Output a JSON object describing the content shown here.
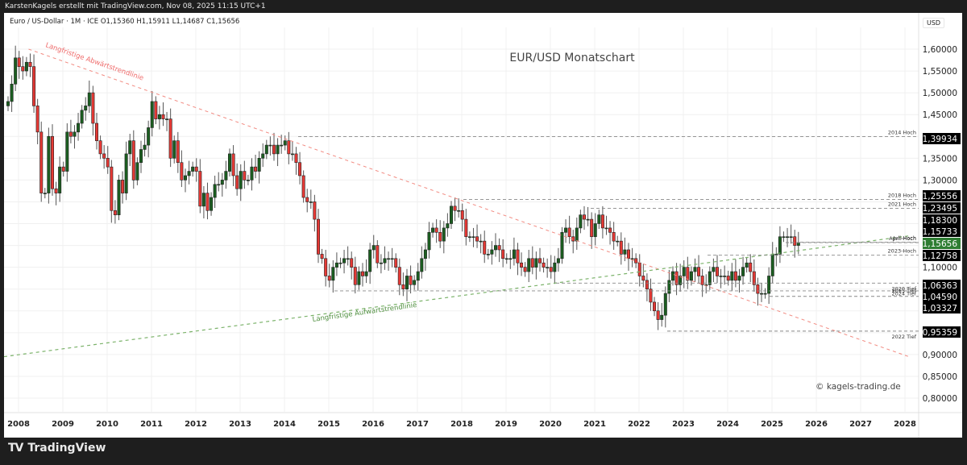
{
  "header": {
    "attribution": "KarstenKagels erstellt mit TradingView.com, Nov 08, 2025 11:15 UTC+1"
  },
  "legend": {
    "symbol": "Euro / US-Dollar · 1M · ICE",
    "ohlc": "O1,15360  H1,15911  L1,14687  C1,15656",
    "text": "Euro / US-Dollar · 1M · ICE  O1,15360  H1,15911  L1,14687  C1,15656"
  },
  "price_axis": {
    "currency": "USD",
    "ticks": [
      "1,60000",
      "1,55000",
      "1,50000",
      "1,45000",
      "1,35000",
      "1,30000",
      "1,10000",
      "0,90000",
      "0,85000",
      "0,80000"
    ]
  },
  "time_axis": {
    "ticks": [
      "2008",
      "2009",
      "2010",
      "2011",
      "2012",
      "2013",
      "2014",
      "2015",
      "2016",
      "2017",
      "2018",
      "2019",
      "2020",
      "2021",
      "2022",
      "2023",
      "2024",
      "2025",
      "2026",
      "2027",
      "2028"
    ]
  },
  "footer": {
    "brand": "TradingView"
  },
  "colors": {
    "up": "#1b5e20",
    "down": "#e53935",
    "downtrend": "#f28b82",
    "uptrend": "#7cb36b",
    "level": "#888888",
    "current": "#2e7d32"
  },
  "chart_data": {
    "type": "candlestick",
    "title": "EUR/USD Monatschart",
    "symbol": "Euro / US-Dollar",
    "interval": "1M",
    "exchange": "ICE",
    "last_bar": {
      "open": 1.1536,
      "high": 1.15911,
      "low": 1.14687,
      "close": 1.15656
    },
    "ylabel": "USD",
    "ylim": [
      0.78,
      1.64
    ],
    "xlim": [
      "2008-01",
      "2028-06"
    ],
    "watermark": "© kagels-trading.de",
    "trendlines": [
      {
        "label": "Langfristige Abwärtstrendlinie",
        "color": "#f28b82",
        "from": [
          "2008-07",
          1.6
        ],
        "to": [
          "2028-06",
          0.895
        ]
      },
      {
        "label": "Langfristige Aufwärtstrendlinie",
        "color": "#7cb36b",
        "from": [
          "2008-01",
          0.895
        ],
        "to": [
          "2026-01",
          1.172
        ]
      }
    ],
    "levels": [
      {
        "label": "2014 Hoch",
        "value": 1.39934,
        "tag": "1,39934"
      },
      {
        "label": "2018 Hoch",
        "value": 1.25556,
        "tag": "1,25556"
      },
      {
        "label": "2021 Hoch",
        "value": 1.23495,
        "tag": "1,23495"
      },
      {
        "label": "",
        "value": 1.183,
        "tag": "1,18300"
      },
      {
        "label": "Juli-Hoch",
        "value": 1.15733,
        "tag": "1,15733"
      },
      {
        "label": "April-Hoch",
        "value": 1.15656,
        "tag": "1,15656",
        "current": true
      },
      {
        "label": "2023-Hoch",
        "value": 1.12758,
        "tag": "1,12758"
      },
      {
        "label": "2020 Tief",
        "value": 1.06363,
        "tag": "1,06363"
      },
      {
        "label": "2015 Tief",
        "value": 1.0459,
        "tag": "1,04590"
      },
      {
        "label": "2024 Tief",
        "value": 1.03327,
        "tag": "1,03327"
      },
      {
        "label": "2022 Tief",
        "value": 0.95359,
        "tag": "0,95359"
      }
    ],
    "monthly_close_approx": {
      "start": "2008-01",
      "closes": [
        1.48,
        1.52,
        1.58,
        1.56,
        1.55,
        1.57,
        1.56,
        1.47,
        1.41,
        1.27,
        1.27,
        1.4,
        1.28,
        1.27,
        1.33,
        1.32,
        1.41,
        1.4,
        1.41,
        1.43,
        1.46,
        1.47,
        1.5,
        1.43,
        1.39,
        1.36,
        1.35,
        1.33,
        1.23,
        1.22,
        1.3,
        1.27,
        1.36,
        1.39,
        1.3,
        1.34,
        1.37,
        1.38,
        1.42,
        1.48,
        1.44,
        1.45,
        1.44,
        1.44,
        1.35,
        1.39,
        1.34,
        1.3,
        1.31,
        1.32,
        1.33,
        1.32,
        1.24,
        1.27,
        1.23,
        1.26,
        1.29,
        1.29,
        1.3,
        1.32,
        1.36,
        1.31,
        1.28,
        1.32,
        1.3,
        1.3,
        1.33,
        1.32,
        1.35,
        1.36,
        1.38,
        1.38,
        1.36,
        1.38,
        1.38,
        1.39,
        1.36,
        1.36,
        1.34,
        1.31,
        1.26,
        1.25,
        1.25,
        1.21,
        1.13,
        1.12,
        1.08,
        1.07,
        1.1,
        1.11,
        1.11,
        1.12,
        1.12,
        1.1,
        1.06,
        1.09,
        1.08,
        1.09,
        1.14,
        1.15,
        1.11,
        1.11,
        1.12,
        1.12,
        1.12,
        1.1,
        1.06,
        1.05,
        1.08,
        1.06,
        1.07,
        1.09,
        1.12,
        1.14,
        1.18,
        1.19,
        1.18,
        1.16,
        1.19,
        1.2,
        1.24,
        1.23,
        1.23,
        1.21,
        1.17,
        1.17,
        1.17,
        1.16,
        1.16,
        1.13,
        1.13,
        1.14,
        1.15,
        1.14,
        1.12,
        1.12,
        1.12,
        1.14,
        1.11,
        1.1,
        1.09,
        1.12,
        1.1,
        1.12,
        1.11,
        1.1,
        1.1,
        1.09,
        1.11,
        1.12,
        1.18,
        1.19,
        1.17,
        1.16,
        1.19,
        1.22,
        1.21,
        1.21,
        1.17,
        1.2,
        1.22,
        1.19,
        1.19,
        1.18,
        1.16,
        1.16,
        1.13,
        1.14,
        1.12,
        1.12,
        1.11,
        1.08,
        1.07,
        1.05,
        1.02,
        1.0,
        0.98,
        0.99,
        1.04,
        1.07,
        1.09,
        1.06,
        1.08,
        1.1,
        1.07,
        1.09,
        1.1,
        1.08,
        1.06,
        1.06,
        1.09,
        1.1,
        1.08,
        1.08,
        1.08,
        1.07,
        1.09,
        1.07,
        1.08,
        1.1,
        1.11,
        1.09,
        1.06,
        1.04,
        1.04,
        1.04,
        1.08,
        1.13,
        1.13,
        1.17,
        1.17,
        1.17,
        1.17,
        1.15,
        1.157
      ]
    }
  }
}
